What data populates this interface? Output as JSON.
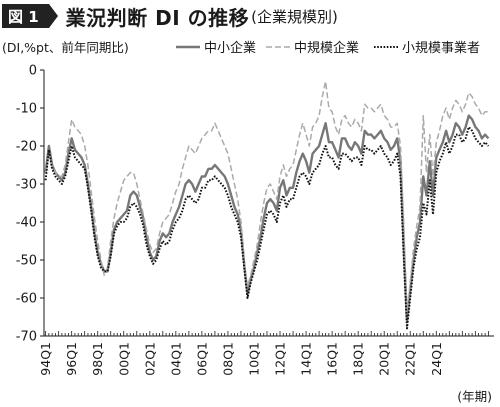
{
  "header": {
    "figure_label": "図 1",
    "title": "業況判断 DI の推移",
    "subtitle": "(企業規模別)"
  },
  "chart_data": {
    "type": "line",
    "title": "業況判断 DI の推移",
    "subtitle": "(企業規模別)",
    "ylabel": "(DI,%pt、前年同期比)",
    "xlabel": "(年期)",
    "ylim": [
      -70,
      0
    ],
    "y_ticks": [
      0,
      -10,
      -20,
      -30,
      -40,
      -50,
      -60,
      -70
    ],
    "x_tick_labels": [
      "94Q1",
      "96Q1",
      "98Q1",
      "00Q1",
      "02Q1",
      "04Q1",
      "06Q1",
      "08Q1",
      "10Q1",
      "12Q1",
      "14Q1",
      "16Q1",
      "18Q1",
      "20Q1",
      "22Q1",
      "24Q1"
    ],
    "x_start": "94Q1",
    "legend_position": "top",
    "grid": false,
    "series": [
      {
        "name": "中小企業",
        "style": "solid",
        "color": "#777777",
        "values": [
          -27,
          -20,
          -25,
          -27,
          -28,
          -29,
          -27,
          -22,
          -18,
          -21,
          -22,
          -23,
          -25,
          -30,
          -36,
          -43,
          -48,
          -51,
          -53,
          -53,
          -48,
          -42,
          -40,
          -39,
          -38,
          -37,
          -33,
          -32,
          -33,
          -36,
          -39,
          -44,
          -48,
          -50,
          -49,
          -45,
          -43,
          -44,
          -43,
          -40,
          -38,
          -36,
          -33,
          -30,
          -29,
          -30,
          -32,
          -30,
          -28,
          -28,
          -26,
          -26,
          -25,
          -26,
          -27,
          -28,
          -30,
          -33,
          -36,
          -38,
          -42,
          -51,
          -59,
          -55,
          -52,
          -48,
          -44,
          -39,
          -35,
          -34,
          -35,
          -37,
          -31,
          -29,
          -33,
          -31,
          -31,
          -27,
          -24,
          -22,
          -24,
          -27,
          -22,
          -21,
          -20,
          -17,
          -14,
          -19,
          -19,
          -21,
          -23,
          -18,
          -18,
          -20,
          -21,
          -19,
          -20,
          -22,
          -16,
          -17,
          -17,
          -18,
          -17,
          -16,
          -18,
          -19,
          -21,
          -20,
          -18,
          -24,
          -46,
          -66,
          -58,
          -50,
          -44,
          -40,
          -28,
          -33,
          -24,
          -33,
          -23,
          -21,
          -19,
          -16,
          -19,
          -17,
          -14,
          -15,
          -17,
          -15,
          -12,
          -13,
          -15,
          -16,
          -18,
          -17,
          -18
        ]
      },
      {
        "name": "中規模企業",
        "style": "dashed",
        "color": "#aaaaaa",
        "values": [
          -27,
          -22,
          -25,
          -27,
          -28,
          -28,
          -25,
          -19,
          -13,
          -15,
          -16,
          -17,
          -20,
          -25,
          -32,
          -39,
          -45,
          -50,
          -54,
          -52,
          -45,
          -39,
          -35,
          -32,
          -29,
          -28,
          -27,
          -27,
          -30,
          -34,
          -38,
          -42,
          -46,
          -48,
          -47,
          -43,
          -40,
          -39,
          -38,
          -35,
          -32,
          -30,
          -26,
          -23,
          -20,
          -21,
          -22,
          -20,
          -18,
          -17,
          -16,
          -16,
          -14,
          -16,
          -18,
          -20,
          -22,
          -26,
          -30,
          -34,
          -40,
          -50,
          -57,
          -54,
          -50,
          -46,
          -40,
          -35,
          -31,
          -30,
          -32,
          -34,
          -28,
          -25,
          -28,
          -26,
          -25,
          -21,
          -17,
          -14,
          -17,
          -20,
          -15,
          -14,
          -12,
          -7,
          -3,
          -10,
          -11,
          -15,
          -17,
          -13,
          -12,
          -14,
          -15,
          -13,
          -14,
          -16,
          -9,
          -10,
          -10,
          -11,
          -10,
          -9,
          -12,
          -13,
          -15,
          -15,
          -14,
          -20,
          -40,
          -64,
          -56,
          -47,
          -41,
          -36,
          -12,
          -27,
          -17,
          -28,
          -19,
          -16,
          -12,
          -10,
          -13,
          -10,
          -8,
          -9,
          -11,
          -9,
          -6,
          -7,
          -9,
          -10,
          -12,
          -11,
          -11
        ]
      },
      {
        "name": "小規模事業者",
        "style": "dotted",
        "color": "#111111",
        "values": [
          -29,
          -21,
          -26,
          -28,
          -29,
          -30,
          -28,
          -24,
          -20,
          -23,
          -24,
          -25,
          -26,
          -31,
          -37,
          -44,
          -49,
          -52,
          -53,
          -53,
          -49,
          -43,
          -41,
          -40,
          -40,
          -39,
          -36,
          -35,
          -36,
          -38,
          -41,
          -46,
          -49,
          -51,
          -50,
          -47,
          -45,
          -46,
          -45,
          -42,
          -40,
          -39,
          -37,
          -34,
          -33,
          -34,
          -35,
          -34,
          -31,
          -31,
          -29,
          -29,
          -28,
          -29,
          -30,
          -31,
          -33,
          -36,
          -38,
          -40,
          -44,
          -52,
          -60,
          -56,
          -53,
          -50,
          -46,
          -42,
          -38,
          -37,
          -38,
          -40,
          -35,
          -33,
          -36,
          -34,
          -34,
          -31,
          -28,
          -27,
          -28,
          -30,
          -27,
          -26,
          -25,
          -22,
          -20,
          -23,
          -23,
          -25,
          -26,
          -22,
          -22,
          -23,
          -24,
          -23,
          -23,
          -25,
          -20,
          -21,
          -21,
          -22,
          -21,
          -20,
          -22,
          -23,
          -25,
          -24,
          -22,
          -28,
          -49,
          -68,
          -60,
          -52,
          -47,
          -44,
          -35,
          -38,
          -29,
          -38,
          -27,
          -24,
          -22,
          -19,
          -22,
          -20,
          -17,
          -17,
          -19,
          -18,
          -15,
          -16,
          -18,
          -19,
          -20,
          -19,
          -20
        ]
      }
    ]
  }
}
